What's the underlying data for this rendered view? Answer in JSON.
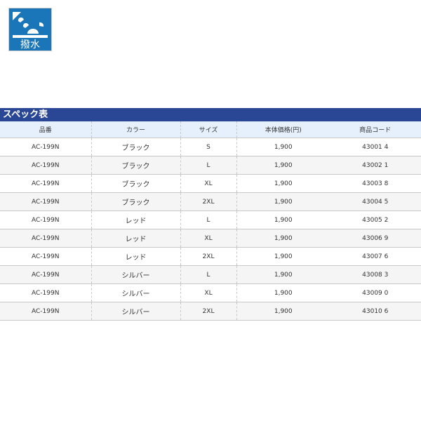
{
  "logo": {
    "label": "撥水",
    "bg": "#1a76b8"
  },
  "spec": {
    "title": "スペック表",
    "headers": [
      "品番",
      "カラー",
      "サイズ",
      "本体価格(円)",
      "商品コード"
    ],
    "rows": [
      [
        "AC-199N",
        "ブラック",
        "S",
        "1,900",
        "43001 4"
      ],
      [
        "AC-199N",
        "ブラック",
        "L",
        "1,900",
        "43002 1"
      ],
      [
        "AC-199N",
        "ブラック",
        "XL",
        "1,900",
        "43003 8"
      ],
      [
        "AC-199N",
        "ブラック",
        "2XL",
        "1,900",
        "43004 5"
      ],
      [
        "AC-199N",
        "レッド",
        "L",
        "1,900",
        "43005 2"
      ],
      [
        "AC-199N",
        "レッド",
        "XL",
        "1,900",
        "43006 9"
      ],
      [
        "AC-199N",
        "レッド",
        "2XL",
        "1,900",
        "43007 6"
      ],
      [
        "AC-199N",
        "シルバー",
        "L",
        "1,900",
        "43008 3"
      ],
      [
        "AC-199N",
        "シルバー",
        "XL",
        "1,900",
        "43009 0"
      ],
      [
        "AC-199N",
        "シルバー",
        "2XL",
        "1,900",
        "43010 6"
      ]
    ],
    "header_bg": "#2a4795"
  }
}
